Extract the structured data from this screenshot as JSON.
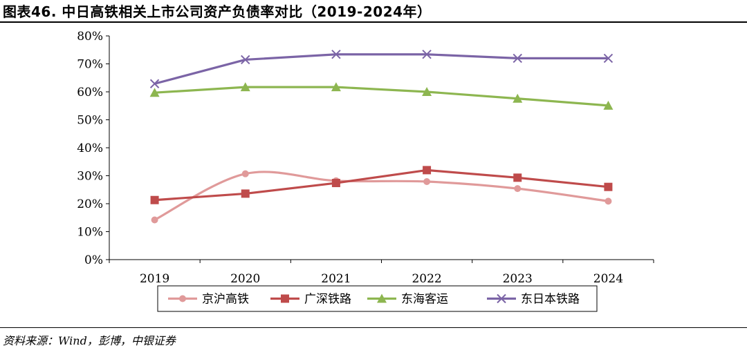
{
  "figure": {
    "title": "图表46. 中日高铁相关上市公司资产负债率对比（2019-2024年）",
    "source": "资料来源：Wind，彭博，中银证券"
  },
  "chart_data": {
    "type": "line",
    "title": "",
    "xlabel": "",
    "ylabel": "",
    "categories": [
      "2019",
      "2020",
      "2021",
      "2022",
      "2023",
      "2024"
    ],
    "ylim": [
      0,
      0.8
    ],
    "yticks": [
      0,
      0.1,
      0.2,
      0.3,
      0.4,
      0.5,
      0.6,
      0.7,
      0.8
    ],
    "ytick_labels": [
      "0%",
      "10%",
      "20%",
      "30%",
      "40%",
      "50%",
      "60%",
      "70%",
      "80%"
    ],
    "grid": false,
    "legend": "bottom",
    "series": [
      {
        "name": "京沪高铁",
        "values": [
          0.142,
          0.307,
          0.282,
          0.279,
          0.254,
          0.209
        ],
        "color": "#e09a9a",
        "marker": "circle",
        "smooth": true
      },
      {
        "name": "广深铁路",
        "values": [
          0.213,
          0.236,
          0.274,
          0.32,
          0.293,
          0.26
        ],
        "color": "#bf4b4b",
        "marker": "square",
        "smooth": false
      },
      {
        "name": "东海客运",
        "values": [
          0.597,
          0.617,
          0.617,
          0.6,
          0.576,
          0.551
        ],
        "color": "#8db650",
        "marker": "triangle",
        "smooth": false
      },
      {
        "name": "东日本铁路",
        "values": [
          0.629,
          0.715,
          0.734,
          0.734,
          0.72,
          0.72
        ],
        "color": "#7b64a6",
        "marker": "x",
        "smooth": false
      }
    ]
  }
}
